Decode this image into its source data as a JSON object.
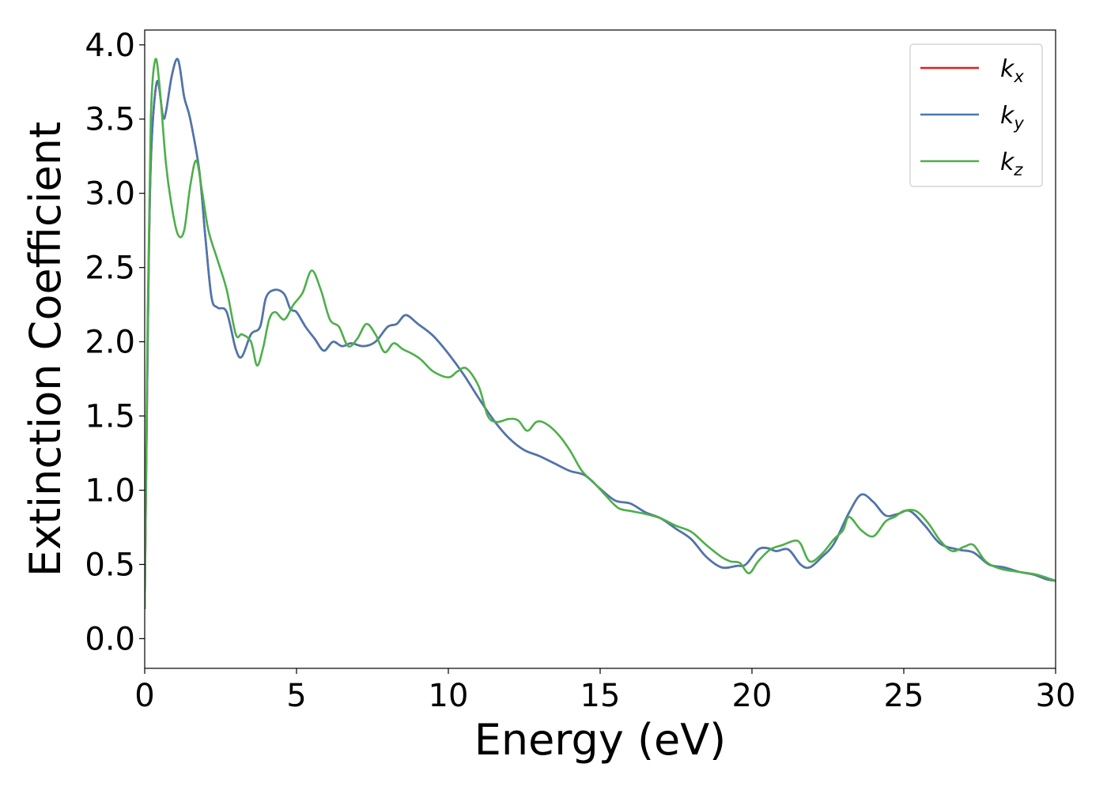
{
  "chart_data": {
    "type": "line",
    "title": "",
    "xlabel": "Energy (eV)",
    "ylabel": "Extinction Coefficient",
    "xlim": [
      0,
      30
    ],
    "ylim": [
      -0.2,
      4.1
    ],
    "xticks": [
      0,
      5,
      10,
      15,
      20,
      25,
      30
    ],
    "xtick_labels": [
      "0",
      "5",
      "10",
      "15",
      "20",
      "25",
      "30"
    ],
    "yticks": [
      0.0,
      0.5,
      1.0,
      1.5,
      2.0,
      2.5,
      3.0,
      3.5,
      4.0
    ],
    "ytick_labels": [
      "0.0",
      "0.5",
      "1.0",
      "1.5",
      "2.0",
      "2.5",
      "3.0",
      "3.5",
      "4.0"
    ],
    "grid": false,
    "legend_position": "top-right",
    "series": [
      {
        "name": "k",
        "subscript": "x",
        "color": "#e41a1c",
        "x": [
          0,
          0.1,
          0.2,
          0.4,
          0.6,
          0.7,
          0.9,
          1.1,
          1.3,
          1.5,
          1.8,
          2.0,
          2.2,
          2.4,
          2.7,
          3.0,
          3.2,
          3.5,
          3.8,
          4.0,
          4.3,
          4.6,
          4.8,
          5.0,
          5.3,
          5.6,
          5.9,
          6.2,
          6.5,
          6.8,
          7.2,
          7.6,
          8.0,
          8.3,
          8.6,
          9.0,
          9.5,
          10.0,
          10.5,
          11.0,
          11.5,
          12.0,
          12.5,
          13.0,
          13.5,
          14.0,
          14.5,
          15.0,
          15.5,
          16.0,
          16.5,
          17.0,
          17.5,
          18.0,
          18.5,
          19.0,
          19.5,
          19.8,
          20.2,
          20.5,
          20.8,
          21.2,
          21.6,
          21.9,
          22.3,
          22.7,
          23.2,
          23.6,
          24.0,
          24.4,
          24.8,
          25.2,
          25.7,
          26.2,
          26.8,
          27.3,
          27.8,
          28.3,
          28.8,
          29.3,
          29.7,
          30.0
        ],
        "y": [
          0.2,
          2.0,
          3.2,
          3.75,
          3.52,
          3.55,
          3.8,
          3.9,
          3.65,
          3.5,
          3.15,
          2.7,
          2.3,
          2.23,
          2.2,
          1.95,
          1.9,
          2.05,
          2.1,
          2.3,
          2.35,
          2.32,
          2.22,
          2.2,
          2.1,
          2.02,
          1.94,
          2.0,
          1.97,
          1.99,
          1.97,
          2.0,
          2.1,
          2.12,
          2.18,
          2.12,
          2.04,
          1.92,
          1.78,
          1.62,
          1.47,
          1.35,
          1.27,
          1.23,
          1.18,
          1.13,
          1.1,
          1.01,
          0.93,
          0.91,
          0.85,
          0.81,
          0.74,
          0.67,
          0.55,
          0.48,
          0.49,
          0.5,
          0.6,
          0.61,
          0.59,
          0.6,
          0.5,
          0.48,
          0.55,
          0.64,
          0.85,
          0.97,
          0.92,
          0.83,
          0.84,
          0.86,
          0.76,
          0.64,
          0.6,
          0.58,
          0.5,
          0.48,
          0.45,
          0.43,
          0.4,
          0.39
        ]
      },
      {
        "name": "k",
        "subscript": "y",
        "color": "#4878b0",
        "x": [
          0,
          0.1,
          0.2,
          0.4,
          0.6,
          0.7,
          0.9,
          1.1,
          1.3,
          1.5,
          1.8,
          2.0,
          2.2,
          2.4,
          2.7,
          3.0,
          3.2,
          3.5,
          3.8,
          4.0,
          4.3,
          4.6,
          4.8,
          5.0,
          5.3,
          5.6,
          5.9,
          6.2,
          6.5,
          6.8,
          7.2,
          7.6,
          8.0,
          8.3,
          8.6,
          9.0,
          9.5,
          10.0,
          10.5,
          11.0,
          11.5,
          12.0,
          12.5,
          13.0,
          13.5,
          14.0,
          14.5,
          15.0,
          15.5,
          16.0,
          16.5,
          17.0,
          17.5,
          18.0,
          18.5,
          19.0,
          19.5,
          19.8,
          20.2,
          20.5,
          20.8,
          21.2,
          21.6,
          21.9,
          22.3,
          22.7,
          23.2,
          23.6,
          24.0,
          24.4,
          24.8,
          25.2,
          25.7,
          26.2,
          26.8,
          27.3,
          27.8,
          28.3,
          28.8,
          29.3,
          29.7,
          30.0
        ],
        "y": [
          0.2,
          2.0,
          3.2,
          3.75,
          3.52,
          3.55,
          3.8,
          3.9,
          3.65,
          3.5,
          3.15,
          2.7,
          2.3,
          2.23,
          2.2,
          1.95,
          1.9,
          2.05,
          2.1,
          2.3,
          2.35,
          2.32,
          2.22,
          2.2,
          2.1,
          2.02,
          1.94,
          2.0,
          1.97,
          1.99,
          1.97,
          2.0,
          2.1,
          2.12,
          2.18,
          2.12,
          2.04,
          1.92,
          1.78,
          1.62,
          1.47,
          1.35,
          1.27,
          1.23,
          1.18,
          1.13,
          1.1,
          1.01,
          0.93,
          0.91,
          0.85,
          0.81,
          0.74,
          0.67,
          0.55,
          0.48,
          0.49,
          0.5,
          0.6,
          0.61,
          0.59,
          0.6,
          0.5,
          0.48,
          0.55,
          0.64,
          0.85,
          0.97,
          0.92,
          0.83,
          0.84,
          0.86,
          0.76,
          0.64,
          0.6,
          0.58,
          0.5,
          0.48,
          0.45,
          0.43,
          0.4,
          0.39
        ]
      },
      {
        "name": "k",
        "subscript": "z",
        "color": "#4daf4a",
        "x": [
          0,
          0.1,
          0.2,
          0.35,
          0.5,
          0.7,
          0.9,
          1.1,
          1.3,
          1.5,
          1.7,
          1.9,
          2.1,
          2.4,
          2.7,
          3.0,
          3.2,
          3.5,
          3.7,
          3.9,
          4.1,
          4.3,
          4.6,
          4.9,
          5.2,
          5.5,
          5.8,
          6.1,
          6.4,
          6.7,
          7.0,
          7.3,
          7.6,
          7.9,
          8.2,
          8.5,
          8.8,
          9.1,
          9.5,
          10.0,
          10.3,
          10.6,
          11.0,
          11.3,
          11.6,
          12.0,
          12.3,
          12.6,
          12.9,
          13.2,
          13.6,
          14.0,
          14.4,
          14.8,
          15.2,
          15.6,
          16.0,
          16.5,
          17.0,
          17.5,
          18.0,
          18.5,
          19.0,
          19.3,
          19.6,
          19.9,
          20.2,
          20.6,
          21.0,
          21.4,
          21.6,
          21.9,
          22.3,
          22.7,
          23.0,
          23.2,
          23.6,
          24.0,
          24.4,
          24.7,
          25.0,
          25.4,
          25.8,
          26.2,
          26.6,
          27.0,
          27.3,
          27.7,
          28.2,
          28.8,
          29.4,
          30.0
        ],
        "y": [
          0.2,
          2.2,
          3.5,
          3.9,
          3.7,
          3.2,
          2.9,
          2.72,
          2.75,
          3.05,
          3.22,
          3.0,
          2.75,
          2.55,
          2.35,
          2.05,
          2.05,
          2.0,
          1.84,
          1.96,
          2.15,
          2.2,
          2.15,
          2.25,
          2.33,
          2.48,
          2.35,
          2.15,
          2.1,
          1.97,
          2.02,
          2.12,
          2.05,
          1.93,
          1.99,
          1.95,
          1.92,
          1.88,
          1.8,
          1.76,
          1.8,
          1.82,
          1.7,
          1.5,
          1.46,
          1.48,
          1.47,
          1.4,
          1.46,
          1.45,
          1.38,
          1.27,
          1.13,
          1.05,
          0.96,
          0.88,
          0.86,
          0.84,
          0.81,
          0.76,
          0.72,
          0.63,
          0.55,
          0.52,
          0.51,
          0.44,
          0.52,
          0.6,
          0.63,
          0.66,
          0.64,
          0.52,
          0.57,
          0.67,
          0.73,
          0.82,
          0.73,
          0.69,
          0.79,
          0.82,
          0.86,
          0.86,
          0.78,
          0.66,
          0.59,
          0.62,
          0.63,
          0.52,
          0.47,
          0.45,
          0.43,
          0.39
        ]
      }
    ]
  }
}
